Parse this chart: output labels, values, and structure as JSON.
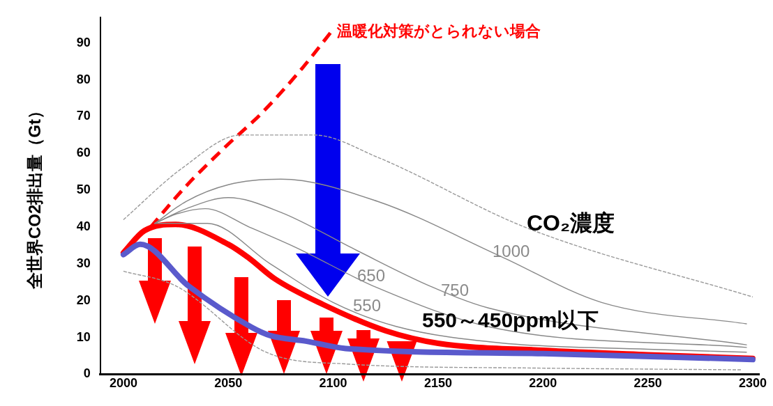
{
  "chart_data": {
    "type": "line",
    "ylabel": "全世界CO2排出量（Gt）",
    "xlim": [
      1989,
      2303
    ],
    "xticks": [
      2000,
      2050,
      2100,
      2150,
      2200,
      2250,
      2300
    ],
    "ylim": [
      0,
      97
    ],
    "yticks": [
      0,
      10,
      20,
      30,
      40,
      50,
      60,
      70,
      80,
      90
    ],
    "grid": false,
    "legend": false,
    "marker": "none",
    "series": [
      {
        "color": "#999999",
        "line_style": "dashed",
        "x": [
          2000,
          2028,
          2056,
          2091,
          2121,
          2193,
          2300
        ],
        "values": [
          42,
          56,
          65,
          65,
          59,
          39.6,
          21
        ]
      },
      {
        "color": "#999999",
        "line_style": "dashed",
        "x": [
          2000,
          2025,
          2068,
          2106,
          2193,
          2295
        ],
        "values": [
          28,
          24,
          6,
          2.8,
          1.7,
          1.2
        ]
      },
      {
        "color": "#888888",
        "line_style": "solid",
        "x": [
          2015,
          2030,
          2050,
          2075,
          2121,
          2180,
          2228,
          2297
        ],
        "values": [
          41,
          47,
          51.5,
          53,
          47,
          32,
          19.5,
          13.7
        ]
      },
      {
        "color": "#888888",
        "line_style": "solid",
        "x": [
          2015,
          2030,
          2050,
          2075,
          2110,
          2146,
          2174,
          2297
        ],
        "values": [
          41,
          45,
          48,
          44,
          34,
          24,
          18,
          8
        ]
      },
      {
        "color": "#888888",
        "line_style": "solid",
        "x": [
          2015,
          2025,
          2039,
          2060,
          2082,
          2121,
          2175,
          2297
        ],
        "values": [
          41,
          43.5,
          45,
          40,
          34.5,
          23.5,
          12.8,
          7.3
        ]
      },
      {
        "color": "#888888",
        "line_style": "solid",
        "x": [
          2015,
          2040,
          2070,
          2100,
          2130,
          2180,
          2250,
          2297
        ],
        "values": [
          41,
          41,
          30,
          19.5,
          13,
          8.5,
          6.8,
          6
        ]
      },
      {
        "name": "温暖化対策がとられない場合",
        "color": "#ff0000",
        "line_style": "dashed",
        "x": [
          2013,
          2029,
          2049,
          2066,
          2085,
          2099
        ],
        "values": [
          40,
          50.6,
          62,
          71,
          83,
          93
        ]
      },
      {
        "color": "#5a5acc",
        "line_style": "solid",
        "x": [
          2000,
          2008,
          2031,
          2061,
          2070,
          2087,
          2106,
          2200,
          2300
        ],
        "values": [
          32.5,
          35.3,
          24,
          12.8,
          10.5,
          9,
          7,
          5.6,
          4
        ]
      },
      {
        "color": "#ff0000",
        "line_style": "solid",
        "x": [
          2000,
          2010,
          2025,
          2050,
          2060,
          2072,
          2095,
          2125,
          2150,
          2200,
          2250,
          2300
        ],
        "values": [
          33,
          39,
          40.7,
          35.3,
          31.5,
          26,
          19,
          11.8,
          8.4,
          6.5,
          5.3,
          4.3
        ]
      }
    ],
    "annotations": [
      "1000",
      "750",
      "650",
      "550",
      "CO₂濃度",
      "550～450ppm以下"
    ]
  }
}
